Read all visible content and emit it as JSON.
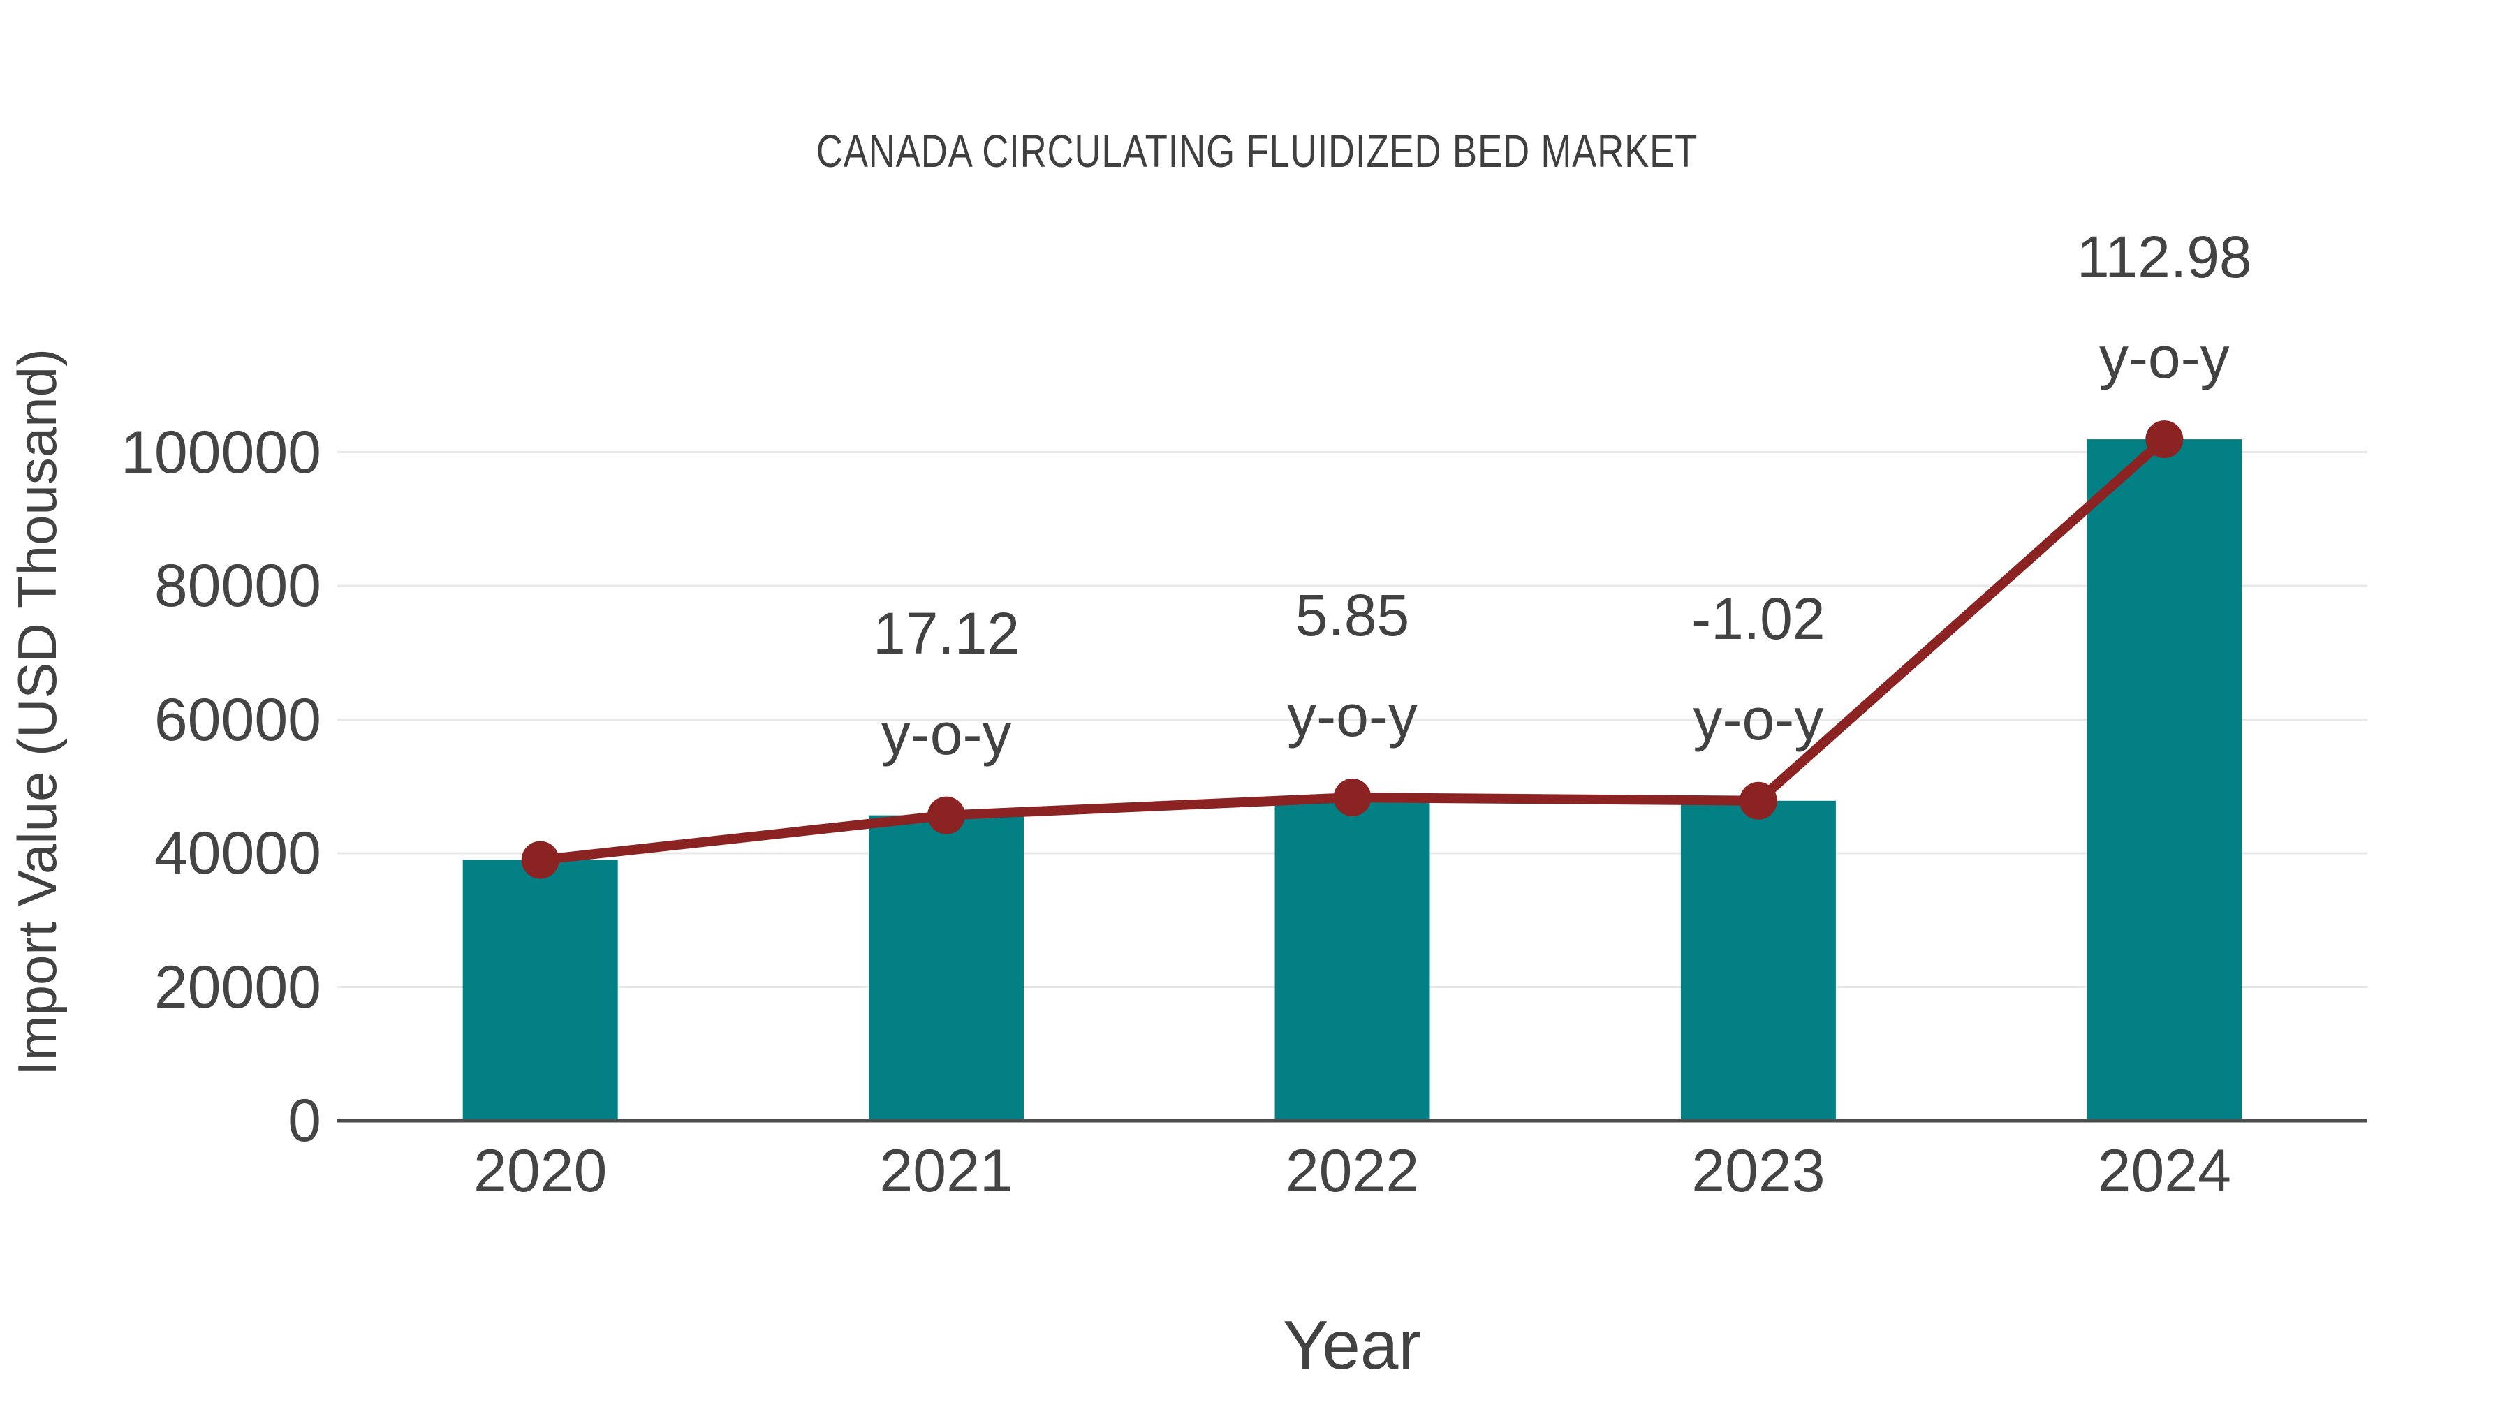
{
  "title": "CANADA CIRCULATING FLUIDIZED BED MARKET",
  "chart_data": {
    "type": "bar",
    "categories": [
      "2020",
      "2021",
      "2022",
      "2023",
      "2024"
    ],
    "series": [
      {
        "name": "Import Value",
        "type": "bar",
        "values": [
          39000,
          45677,
          48349,
          47856,
          101923
        ]
      },
      {
        "name": "y-o-y growth",
        "type": "line",
        "values": [
          39000,
          45677,
          48349,
          47856,
          101923
        ]
      }
    ],
    "annotations": {
      "suffix": "y-o-y",
      "labels": [
        "",
        "17.12",
        "5.85",
        "-1.02",
        "112.98"
      ]
    },
    "title": "CANADA CIRCULATING FLUIDIZED BED MARKET",
    "xlabel": "Year",
    "ylabel": "Import Value (USD Thousand)",
    "y_ticks": [
      0,
      20000,
      40000,
      60000,
      80000,
      100000
    ],
    "ylim": [
      0,
      105000
    ],
    "grid": "horizontal",
    "legend": "none",
    "colors": {
      "bar": "#028083",
      "line": "#8b2323",
      "marker": "#8b2323",
      "gridline": "#e8e8e8",
      "axis_line": "#4d4d4d",
      "text": "#424242"
    }
  }
}
